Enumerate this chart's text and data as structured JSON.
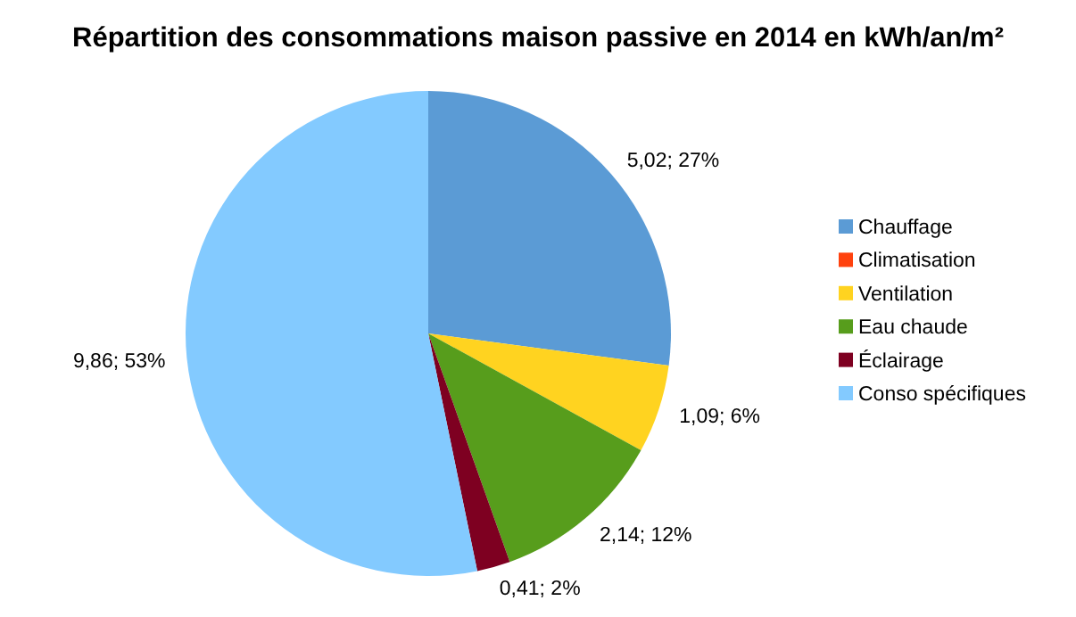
{
  "chart_data": {
    "type": "pie",
    "title": "Répartition des consommations maison passive en 2014 en kWh/an/m²",
    "categories": [
      "Chauffage",
      "Climatisation",
      "Ventilation",
      "Eau chaude",
      "Éclairage",
      "Conso spécifiques"
    ],
    "values": [
      5.02,
      0,
      1.09,
      2.14,
      0.41,
      9.86
    ],
    "colors": [
      "#5b9bd5",
      "#ff420e",
      "#ffd320",
      "#579d1c",
      "#7e0021",
      "#83caff"
    ],
    "value_labels": [
      "5,02; 27%",
      null,
      "1,09; 6%",
      "2,14; 12%",
      "0,41; 2%",
      "9,86; 53%"
    ],
    "legend": "right"
  }
}
